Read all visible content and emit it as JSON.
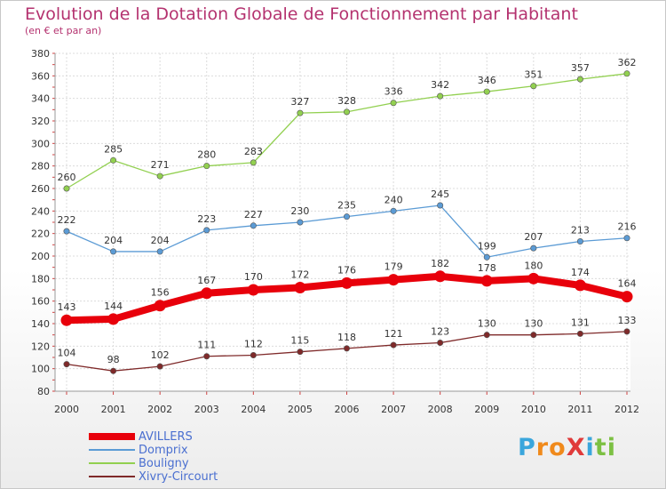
{
  "header": {
    "title": "Evolution de la Dotation Globale de Fonctionnement par Habitant",
    "subtitle": "(en € et par an)"
  },
  "logo": {
    "text": "ProXiti",
    "letters": [
      {
        "char": "P",
        "color": "#3aa6dc"
      },
      {
        "char": "r",
        "color": "#f08a1c"
      },
      {
        "char": "o",
        "color": "#f08a1c"
      },
      {
        "char": "X",
        "color": "#e03a3a"
      },
      {
        "char": "i",
        "color": "#3aa6dc"
      },
      {
        "char": "t",
        "color": "#7cc043"
      },
      {
        "char": "i",
        "color": "#7cc043"
      }
    ]
  },
  "chart_data": {
    "type": "line",
    "x": [
      "2000",
      "2001",
      "2002",
      "2003",
      "2004",
      "2005",
      "2006",
      "2007",
      "2008",
      "2009",
      "2010",
      "2011",
      "2012"
    ],
    "ylim": [
      80,
      380
    ],
    "yticks": [
      80,
      100,
      120,
      140,
      160,
      180,
      200,
      220,
      240,
      260,
      280,
      300,
      320,
      340,
      360,
      380
    ],
    "grid": true,
    "legend_position": "bottom-left",
    "series": [
      {
        "name": "AVILLERS",
        "color": "#e8000b",
        "emphasis": true,
        "values": [
          143,
          144,
          156,
          167,
          170,
          172,
          176,
          179,
          182,
          178,
          180,
          174,
          164
        ]
      },
      {
        "name": "Domprix",
        "color": "#5b9bd5",
        "emphasis": false,
        "values": [
          222,
          204,
          204,
          223,
          227,
          230,
          235,
          240,
          245,
          199,
          207,
          213,
          216
        ]
      },
      {
        "name": "Bouligny",
        "color": "#92d050",
        "emphasis": false,
        "values": [
          260,
          285,
          271,
          280,
          283,
          327,
          328,
          336,
          342,
          346,
          351,
          357,
          362
        ]
      },
      {
        "name": "Xivry-Circourt",
        "color": "#7f2a2a",
        "emphasis": false,
        "values": [
          104,
          98,
          102,
          111,
          112,
          115,
          118,
          121,
          123,
          130,
          130,
          131,
          133
        ]
      }
    ]
  }
}
